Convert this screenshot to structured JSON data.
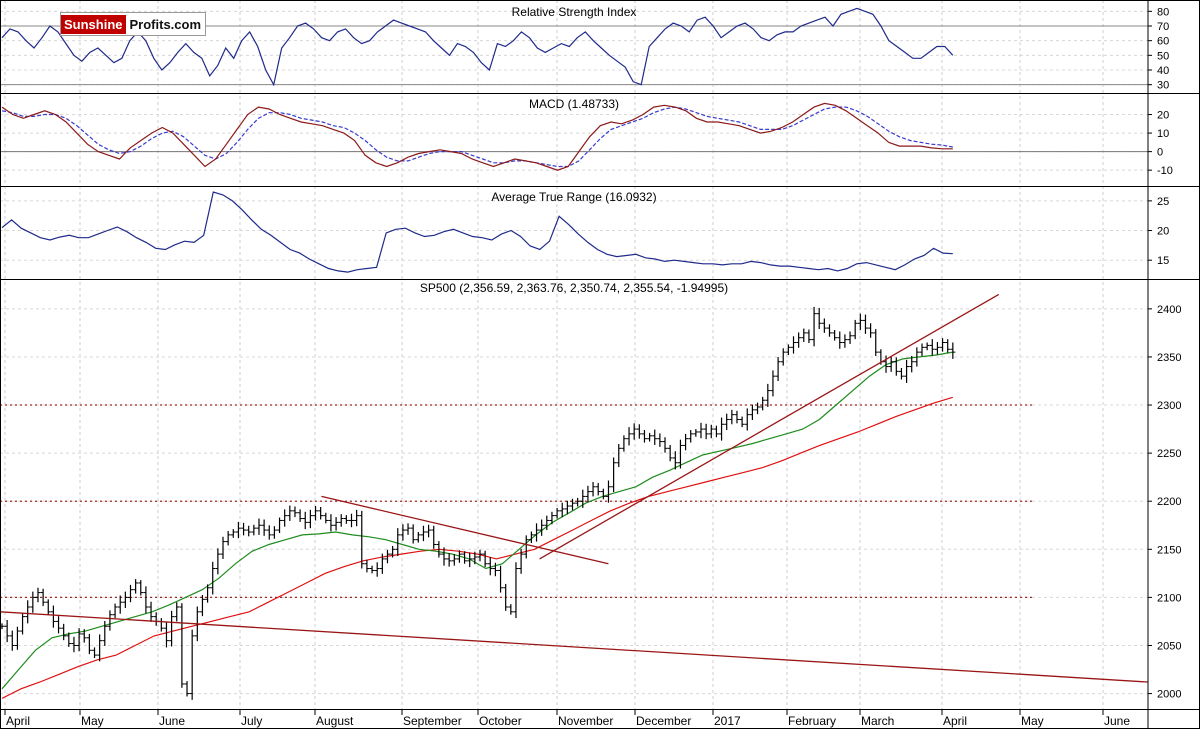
{
  "branding": {
    "logo_part1": "Sunshine",
    "logo_part2": "Profits.com"
  },
  "chart_data": [
    {
      "id": "rsi",
      "type": "line",
      "title": "Relative Strength Index",
      "ylim": [
        25,
        85
      ],
      "yticks": [
        30,
        40,
        50,
        60,
        70,
        80
      ],
      "reference_lines": [
        30,
        70
      ],
      "colors": {
        "rsi": "#1f2a8a",
        "ref": "#888888"
      },
      "series": [
        {
          "values": [
            62,
            68,
            66,
            60,
            55,
            62,
            70,
            66,
            58,
            50,
            46,
            52,
            55,
            50,
            45,
            48,
            60,
            66,
            60,
            48,
            40,
            45,
            52,
            58,
            52,
            48,
            36,
            43,
            55,
            48,
            60,
            66,
            56,
            40,
            30,
            55,
            62,
            70,
            72,
            68,
            62,
            60,
            66,
            68,
            62,
            58,
            60,
            66,
            70,
            74,
            72,
            70,
            68,
            66,
            60,
            55,
            50,
            58,
            56,
            52,
            45,
            40,
            58,
            56,
            60,
            66,
            62,
            55,
            52,
            55,
            58,
            56,
            62,
            66,
            60,
            55,
            50,
            46,
            42,
            32,
            30,
            56,
            62,
            68,
            72,
            70,
            66,
            74,
            76,
            70,
            62,
            66,
            70,
            72,
            68,
            62,
            60,
            64,
            66,
            66,
            70,
            72,
            74,
            76,
            70,
            78,
            80,
            82,
            80,
            78,
            70,
            60,
            56,
            52,
            48,
            48,
            52,
            56,
            56,
            50
          ]
        }
      ]
    },
    {
      "id": "macd",
      "type": "line",
      "title": "MACD (1.48733)",
      "ylim": [
        -18,
        30
      ],
      "yticks": [
        -10,
        0,
        10,
        20
      ],
      "colors": {
        "macd": "#8b1a1a",
        "signal": "#3a3ad0",
        "zero": "#777777"
      },
      "series": [
        {
          "name": "MACD",
          "values": [
            24,
            20,
            18,
            20,
            22,
            20,
            16,
            10,
            4,
            0,
            -2,
            -4,
            2,
            6,
            10,
            13,
            10,
            4,
            -2,
            -8,
            -4,
            4,
            12,
            20,
            24,
            23,
            20,
            18,
            16,
            15,
            14,
            12,
            10,
            6,
            -2,
            -6,
            -8,
            -6,
            -3,
            -1,
            0,
            1,
            0,
            -1,
            -4,
            -6,
            -8,
            -6,
            -4,
            -5,
            -6,
            -8,
            -10,
            -8,
            0,
            8,
            14,
            16,
            15,
            17,
            20,
            24,
            25,
            24,
            22,
            18,
            16,
            16,
            15,
            14,
            12,
            10,
            11,
            13,
            16,
            20,
            24,
            26,
            25,
            22,
            18,
            14,
            10,
            5,
            3,
            3,
            3,
            2,
            1.5,
            1.5
          ]
        },
        {
          "name": "Signal",
          "values": [
            22,
            21,
            19,
            19,
            20,
            20,
            18,
            14,
            9,
            4,
            1,
            -1,
            0,
            3,
            7,
            10,
            11,
            8,
            3,
            -2,
            -4,
            -1,
            5,
            12,
            18,
            21,
            21,
            20,
            18,
            17,
            16,
            14,
            13,
            10,
            6,
            1,
            -3,
            -5,
            -5,
            -3,
            -1,
            0,
            0,
            0,
            -2,
            -4,
            -6,
            -6,
            -5,
            -5,
            -6,
            -7,
            -8,
            -8,
            -5,
            1,
            7,
            12,
            14,
            16,
            18,
            21,
            23,
            24,
            23,
            21,
            19,
            18,
            17,
            16,
            14,
            12,
            12,
            12,
            14,
            17,
            20,
            23,
            24,
            24,
            22,
            19,
            15,
            11,
            8,
            6,
            5,
            4,
            3.5,
            2.5
          ]
        }
      ]
    },
    {
      "id": "atr",
      "type": "line",
      "title": "Average True Range (16.0932)",
      "ylim": [
        12,
        27
      ],
      "yticks": [
        15,
        20,
        25
      ],
      "colors": {
        "atr": "#1f2a8a"
      },
      "series": [
        {
          "values": [
            20.5,
            21.8,
            20.4,
            19.6,
            18.8,
            18.4,
            18.9,
            19.2,
            18.8,
            18.8,
            19.4,
            20.0,
            20.6,
            19.8,
            18.8,
            18.0,
            17.0,
            16.8,
            17.6,
            18.2,
            18.0,
            19.2,
            26.5,
            26.0,
            25.0,
            23.5,
            21.8,
            20.2,
            19.2,
            18.0,
            16.8,
            16.2,
            15.2,
            14.4,
            13.6,
            13.2,
            13.0,
            13.4,
            13.6,
            13.8,
            19.6,
            20.2,
            20.4,
            19.6,
            19.0,
            19.2,
            19.8,
            20.2,
            19.6,
            19.0,
            18.8,
            18.4,
            19.4,
            20.0,
            19.0,
            17.4,
            16.8,
            18.2,
            22.4,
            21.0,
            19.4,
            18.0,
            16.8,
            16.0,
            15.6,
            15.8,
            16.0,
            15.4,
            15.2,
            14.8,
            15.0,
            14.8,
            14.6,
            14.4,
            14.4,
            14.2,
            14.4,
            14.4,
            14.8,
            14.6,
            14.2,
            14.0,
            14.0,
            13.8,
            13.6,
            13.4,
            13.6,
            13.2,
            13.6,
            14.4,
            14.6,
            14.2,
            13.8,
            13.4,
            14.2,
            15.2,
            15.8,
            17.0,
            16.2,
            16.1
          ]
        }
      ]
    },
    {
      "id": "sp500",
      "type": "ohlc",
      "title": "SP500 (2,356.59, 2,363.76, 2,350.74, 2,355.54, -1.94995)",
      "ylim": [
        1985,
        2430
      ],
      "yticks": [
        2000,
        2050,
        2100,
        2150,
        2200,
        2250,
        2300,
        2350,
        2400
      ],
      "x_labels": [
        "April",
        "May",
        "June",
        "July",
        "August",
        "September",
        "October",
        "November",
        "December",
        "2017",
        "February",
        "March",
        "April",
        "May",
        "June"
      ],
      "horizontal_levels": [
        2100,
        2200,
        2300
      ],
      "colors": {
        "bars": "#000000",
        "ma_short": "#1e8c1e",
        "ma_long": "#e01010",
        "trend": "#9a1616",
        "levels": "#a02828",
        "grid": "#cfcfcf"
      },
      "closes": [
        2070,
        2060,
        2050,
        2065,
        2080,
        2090,
        2100,
        2105,
        2095,
        2085,
        2075,
        2068,
        2060,
        2052,
        2050,
        2062,
        2058,
        2045,
        2040,
        2055,
        2070,
        2082,
        2090,
        2095,
        2100,
        2108,
        2115,
        2105,
        2090,
        2080,
        2075,
        2068,
        2055,
        2080,
        2090,
        2010,
        2000,
        2060,
        2085,
        2098,
        2110,
        2130,
        2145,
        2158,
        2165,
        2168,
        2172,
        2170,
        2168,
        2172,
        2175,
        2170,
        2165,
        2170,
        2180,
        2185,
        2190,
        2188,
        2182,
        2178,
        2185,
        2190,
        2185,
        2180,
        2175,
        2178,
        2182,
        2180,
        2180,
        2185,
        2135,
        2130,
        2128,
        2130,
        2140,
        2145,
        2150,
        2165,
        2170,
        2172,
        2160,
        2165,
        2168,
        2170,
        2155,
        2145,
        2140,
        2138,
        2140,
        2145,
        2138,
        2140,
        2142,
        2145,
        2135,
        2130,
        2128,
        2110,
        2090,
        2085,
        2130,
        2145,
        2160,
        2165,
        2170,
        2175,
        2180,
        2185,
        2190,
        2192,
        2195,
        2198,
        2200,
        2205,
        2210,
        2215,
        2210,
        2205,
        2215,
        2240,
        2255,
        2265,
        2270,
        2275,
        2270,
        2265,
        2268,
        2265,
        2262,
        2255,
        2245,
        2240,
        2258,
        2265,
        2270,
        2272,
        2275,
        2270,
        2275,
        2270,
        2280,
        2285,
        2290,
        2285,
        2280,
        2290,
        2295,
        2298,
        2305,
        2315,
        2330,
        2345,
        2355,
        2360,
        2365,
        2370,
        2375,
        2368,
        2395,
        2385,
        2380,
        2375,
        2370,
        2365,
        2368,
        2372,
        2385,
        2388,
        2380,
        2375,
        2355,
        2345,
        2340,
        2345,
        2335,
        2330,
        2340,
        2345,
        2355,
        2360,
        2362,
        2358,
        2360,
        2365,
        2358,
        2355
      ],
      "ma_short_values": [
        2005,
        2025,
        2045,
        2058,
        2062,
        2065,
        2070,
        2075,
        2080,
        2085,
        2092,
        2100,
        2108,
        2120,
        2135,
        2148,
        2155,
        2160,
        2165,
        2166,
        2168,
        2165,
        2163,
        2160,
        2155,
        2150,
        2148,
        2145,
        2140,
        2130,
        2135,
        2150,
        2165,
        2178,
        2188,
        2198,
        2205,
        2210,
        2215,
        2225,
        2232,
        2240,
        2248,
        2252,
        2256,
        2260,
        2265,
        2270,
        2275,
        2285,
        2300,
        2315,
        2330,
        2342,
        2348,
        2350,
        2352,
        2355
      ],
      "ma_long_values": [
        1995,
        2005,
        2012,
        2020,
        2028,
        2035,
        2040,
        2050,
        2060,
        2065,
        2070,
        2075,
        2080,
        2085,
        2095,
        2105,
        2115,
        2125,
        2132,
        2138,
        2142,
        2145,
        2148,
        2150,
        2148,
        2145,
        2140,
        2145,
        2150,
        2160,
        2170,
        2180,
        2190,
        2198,
        2205,
        2210,
        2215,
        2220,
        2225,
        2230,
        2235,
        2242,
        2250,
        2258,
        2265,
        2272,
        2280,
        2288,
        2295,
        2302,
        2308
      ],
      "trend_lines": [
        {
          "from": [
            0,
            2085
          ],
          "to": [
            1,
            2012
          ]
        },
        {
          "from": [
            0.28,
            2205
          ],
          "to": [
            0.53,
            2135
          ]
        },
        {
          "from": [
            0.47,
            2140
          ],
          "to": [
            0.87,
            2415
          ]
        }
      ]
    }
  ]
}
